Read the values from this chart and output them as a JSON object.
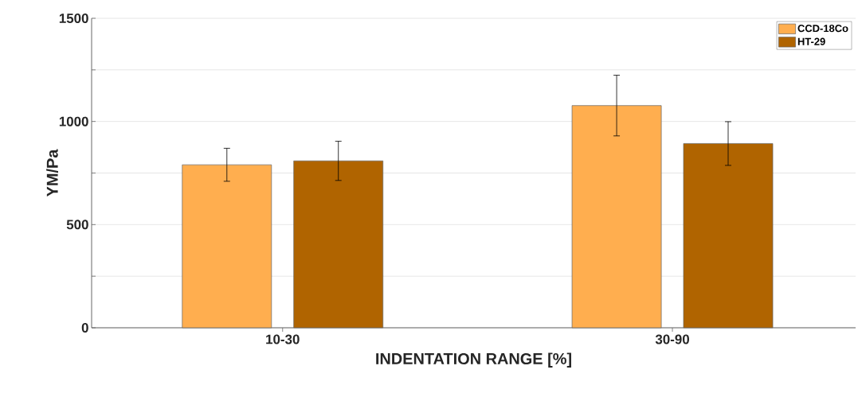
{
  "chart_data": {
    "type": "bar",
    "xlabel": "INDENTATION RANGE [%]",
    "ylabel": "YM/Pa",
    "categories": [
      "10-30",
      "30-90"
    ],
    "series": [
      {
        "name": "CCD-18Co",
        "color": "#ffae4f",
        "values": [
          790,
          1077
        ],
        "errors": [
          80,
          147
        ]
      },
      {
        "name": "HT-29",
        "color": "#b06400",
        "values": [
          809,
          893
        ],
        "errors": [
          95,
          106
        ]
      }
    ],
    "ylim": [
      0,
      1500
    ],
    "yticks": [
      0,
      {
        "value": 250,
        "label": null
      },
      500,
      {
        "value": 750,
        "label": null
      },
      1000,
      {
        "value": 1250,
        "label": null
      },
      1500
    ],
    "grid": "y",
    "legend": "top right"
  }
}
